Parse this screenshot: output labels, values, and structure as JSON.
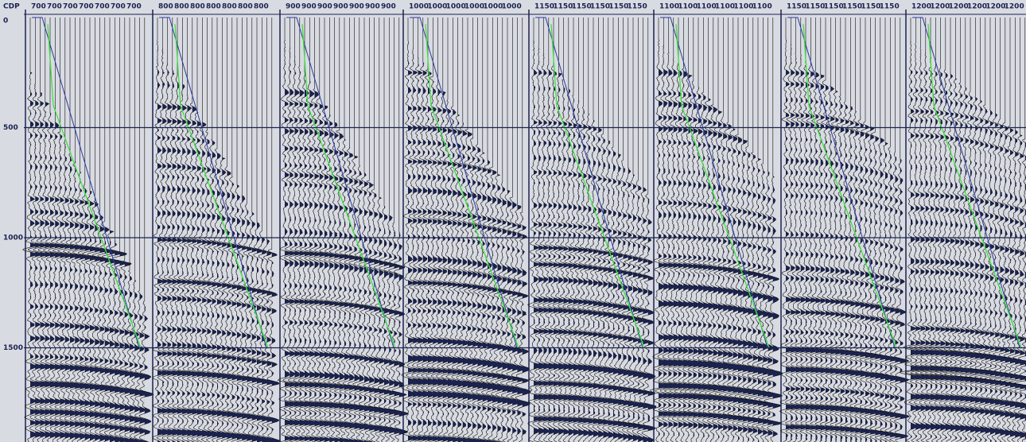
{
  "axis": {
    "header": "CDP",
    "ticks": [
      "0",
      "500",
      "1000",
      "1500"
    ]
  },
  "panels": [
    {
      "labels": [
        "700",
        "700",
        "700",
        "700",
        "700",
        "700",
        "700"
      ]
    },
    {
      "labels": [
        "800",
        "800",
        "800",
        "800",
        "800",
        "800",
        "800"
      ]
    },
    {
      "labels": [
        "900",
        "900",
        "900",
        "900",
        "900",
        "900",
        "900"
      ]
    },
    {
      "labels": [
        "1000",
        "1000",
        "1000",
        "1000",
        "1000",
        "1000"
      ]
    },
    {
      "labels": [
        "1150",
        "1150",
        "1150",
        "1150",
        "1150",
        "1150"
      ]
    },
    {
      "labels": [
        "1100",
        "1100",
        "1100",
        "1100",
        "1100",
        "1100"
      ]
    },
    {
      "labels": [
        "1150",
        "1150",
        "1150",
        "1150",
        "1150",
        "1150"
      ]
    },
    {
      "labels": [
        "1200",
        "1200",
        "1200",
        "1200",
        "1200",
        "1200"
      ]
    }
  ]
}
